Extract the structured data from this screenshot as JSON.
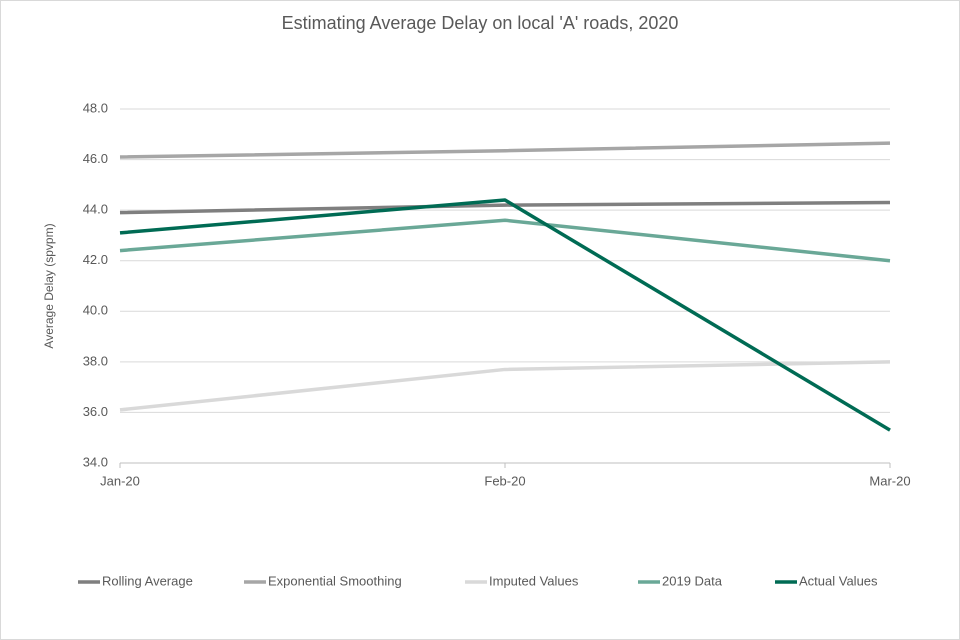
{
  "chart_data": {
    "type": "line",
    "title": "Estimating Average Delay on local 'A' roads, 2020",
    "y_label": "Average Delay (spvpm)",
    "categories": [
      "Jan-20",
      "Feb-20",
      "Mar-20"
    ],
    "series": [
      {
        "name": "Rolling Average",
        "color": "#7f7f7f",
        "values": [
          43.9,
          44.2,
          44.3
        ]
      },
      {
        "name": "Exponential Smoothing",
        "color": "#a6a6a6",
        "values": [
          46.1,
          46.35,
          46.65
        ]
      },
      {
        "name": "Imputed Values",
        "color": "#d9d9d9",
        "values": [
          36.1,
          37.7,
          38.0
        ]
      },
      {
        "name": "2019 Data",
        "color": "#6aa897",
        "values": [
          42.4,
          43.6,
          42.0
        ]
      },
      {
        "name": "Actual Values",
        "color": "#006b54",
        "values": [
          43.1,
          44.4,
          35.3
        ]
      }
    ],
    "ylim": [
      34,
      48
    ],
    "yticks": [
      {
        "value": 34,
        "label": "34.0"
      },
      {
        "value": 36,
        "label": "36.0"
      },
      {
        "value": 38,
        "label": "38.0"
      },
      {
        "value": 40,
        "label": "40.0"
      },
      {
        "value": 42,
        "label": "42.0"
      },
      {
        "value": 44,
        "label": "44.0"
      },
      {
        "value": 46,
        "label": "46.0"
      },
      {
        "value": 48,
        "label": "48.0"
      }
    ],
    "grid": true,
    "legend": "bottom"
  }
}
